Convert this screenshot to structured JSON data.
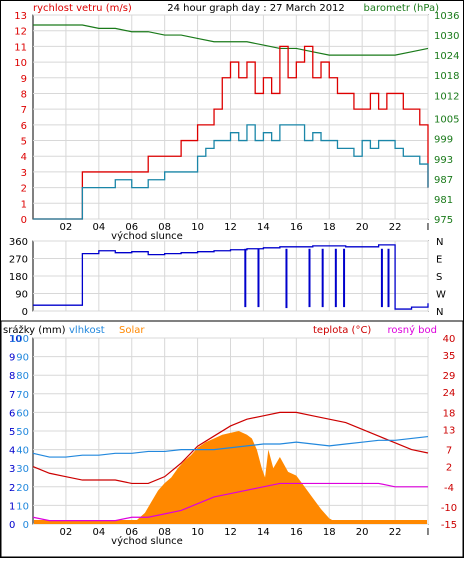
{
  "chart_data": [
    {
      "type": "line",
      "title": "24 hour graph day : 27 March 2012",
      "left_axis_label": "rychlost vetru (m/s)",
      "right_axis_label": "barometr (hPa)",
      "x_ticks": [
        "02",
        "04",
        "06",
        "08",
        "10",
        "12",
        "14",
        "16",
        "18",
        "20",
        "22",
        "I"
      ],
      "x_note": "východ slunce",
      "ylim_left": [
        0,
        13
      ],
      "y_left_ticks": [
        0,
        1,
        2,
        3,
        4,
        5,
        6,
        7,
        8,
        9,
        10,
        11,
        12,
        13
      ],
      "ylim_right": [
        975,
        1036
      ],
      "y_right_ticks": [
        975,
        981,
        987,
        993,
        999,
        1005,
        1012,
        1018,
        1024,
        1030,
        1036
      ],
      "grid": true,
      "colors": {
        "gust": "#dd0000",
        "wind": "#1a86a8",
        "pressure": "#1a7a1a",
        "left_axis": "#dd0000",
        "right_axis": "#1a7a1a"
      },
      "series": [
        {
          "key": "pressure",
          "x": [
            0,
            1,
            2,
            3,
            4,
            5,
            6,
            7,
            8,
            9,
            10,
            11,
            12,
            13,
            14,
            15,
            16,
            17,
            18,
            19,
            20,
            21,
            22,
            23,
            24
          ],
          "values": [
            1033,
            1033,
            1033,
            1033,
            1032,
            1032,
            1031,
            1031,
            1030,
            1030,
            1029,
            1028,
            1028,
            1028,
            1027,
            1026,
            1026,
            1025,
            1024,
            1024,
            1024,
            1024,
            1024,
            1025,
            1026
          ]
        },
        {
          "key": "gust",
          "x": [
            0,
            1,
            2,
            2.5,
            3,
            4,
            5,
            6,
            7,
            8,
            9,
            10,
            10.5,
            11,
            11.5,
            12,
            12.5,
            13,
            13.5,
            14,
            14.5,
            15,
            15.5,
            16,
            16.5,
            17,
            17.5,
            18,
            18.5,
            19,
            19.5,
            20,
            20.5,
            21,
            21.5,
            22,
            22.5,
            23,
            23.5,
            24
          ],
          "values": [
            0,
            0,
            0,
            0,
            3,
            3,
            3,
            3,
            4,
            4,
            5,
            6,
            6,
            7,
            9,
            10,
            9,
            10,
            8,
            9,
            8,
            11,
            9,
            10,
            11,
            9,
            10,
            9,
            8,
            8,
            7,
            7,
            8,
            7,
            8,
            8,
            7,
            7,
            6,
            2
          ]
        },
        {
          "key": "wind",
          "x": [
            0,
            1,
            2,
            2.5,
            3,
            4,
            5,
            6,
            7,
            8,
            9,
            10,
            10.5,
            11,
            11.5,
            12,
            12.5,
            13,
            13.5,
            14,
            14.5,
            15,
            15.5,
            16,
            16.5,
            17,
            17.5,
            18,
            18.5,
            19,
            19.5,
            20,
            20.5,
            21,
            21.5,
            22,
            22.5,
            23,
            23.5,
            24
          ],
          "values": [
            0,
            0,
            0,
            0,
            2,
            2,
            2.5,
            2,
            2.5,
            3,
            3,
            4,
            4.5,
            5,
            5,
            5.5,
            5,
            6,
            5,
            5.5,
            5,
            6,
            6,
            6,
            5,
            5.5,
            5,
            5,
            4.5,
            4.5,
            4,
            5,
            4.5,
            5,
            5,
            4.5,
            4,
            4,
            3.5,
            2
          ]
        }
      ]
    },
    {
      "type": "line",
      "ylim": [
        0,
        360
      ],
      "y_ticks": [
        0,
        90,
        180,
        270,
        360
      ],
      "right_ticks": [
        "N",
        "E",
        "S",
        "W",
        "N"
      ],
      "grid": true,
      "colors": {
        "direction": "#0000cc"
      },
      "series": [
        {
          "key": "direction",
          "x": [
            0,
            1,
            2,
            2.5,
            3,
            4,
            5,
            6,
            7,
            8,
            9,
            10,
            11,
            12,
            13,
            14,
            15,
            16,
            17,
            18,
            19,
            20,
            21,
            22,
            23,
            24
          ],
          "values": [
            30,
            30,
            30,
            30,
            295,
            310,
            300,
            305,
            290,
            295,
            300,
            305,
            310,
            315,
            320,
            325,
            330,
            330,
            335,
            335,
            330,
            330,
            340,
            10,
            20,
            40
          ]
        }
      ],
      "drops": [
        {
          "x": 12.9,
          "value": 20
        },
        {
          "x": 13.7,
          "value": 20
        },
        {
          "x": 15.4,
          "value": 15
        },
        {
          "x": 16.8,
          "value": 20
        },
        {
          "x": 17.6,
          "value": 20
        },
        {
          "x": 18.4,
          "value": 20
        },
        {
          "x": 18.9,
          "value": 20
        },
        {
          "x": 21.2,
          "value": 20
        },
        {
          "x": 21.6,
          "value": 20
        }
      ]
    },
    {
      "type": "area",
      "labels": {
        "precip": "srážky (mm)",
        "humidity": "vlhkost",
        "solar": "Solar",
        "temperature": "teplota (°C)",
        "dew_point": "rosný bod"
      },
      "x_ticks": [
        "02",
        "04",
        "06",
        "08",
        "10",
        "12",
        "14",
        "16",
        "18",
        "20",
        "22",
        "I"
      ],
      "x_note": "východ slunce",
      "ylim_precip": [
        0,
        10
      ],
      "y_precip_ticks": [
        0,
        1,
        2,
        3,
        4,
        5,
        6,
        7,
        8,
        9,
        10
      ],
      "ylim_humidity": [
        0,
        100
      ],
      "y_humidity_ticks": [
        0,
        10,
        20,
        30,
        40,
        50,
        60,
        70,
        80,
        90,
        100
      ],
      "ylim_temperature": [
        -15,
        40
      ],
      "y_temperature_ticks": [
        40,
        35,
        29,
        24,
        18,
        13,
        7,
        2,
        -4,
        -10,
        -15
      ],
      "grid": true,
      "colors": {
        "temperature": "#cc0000",
        "humidity": "#2288dd",
        "solar": "#ff8800",
        "dew_point": "#dd00dd",
        "precip": "#0000cc"
      },
      "series": [
        {
          "key": "temperature",
          "x": [
            0,
            1,
            2,
            3,
            4,
            5,
            6,
            7,
            8,
            9,
            10,
            11,
            12,
            13,
            14,
            15,
            16,
            17,
            18,
            19,
            20,
            21,
            22,
            23,
            24
          ],
          "values": [
            2,
            0,
            -1,
            -2,
            -2,
            -2,
            -3,
            -3,
            -1,
            3,
            8,
            11,
            14,
            16,
            17,
            18,
            18,
            17,
            16,
            15,
            13,
            11,
            9,
            7,
            6
          ]
        },
        {
          "key": "humidity",
          "x": [
            0,
            1,
            2,
            3,
            4,
            5,
            6,
            7,
            8,
            9,
            10,
            11,
            12,
            13,
            14,
            15,
            16,
            17,
            18,
            19,
            20,
            21,
            22,
            23,
            24
          ],
          "values": [
            38,
            36,
            36,
            37,
            37,
            38,
            38,
            39,
            39,
            40,
            40,
            40,
            41,
            42,
            43,
            43,
            44,
            43,
            42,
            43,
            44,
            45,
            45,
            46,
            47
          ]
        },
        {
          "key": "dew_point",
          "x": [
            0,
            1,
            2,
            3,
            4,
            5,
            6,
            7,
            8,
            9,
            10,
            11,
            12,
            13,
            14,
            15,
            16,
            17,
            18,
            19,
            20,
            21,
            22,
            23,
            24
          ],
          "values": [
            -13,
            -14,
            -14,
            -14,
            -14,
            -14,
            -13,
            -13,
            -12,
            -11,
            -9,
            -7,
            -6,
            -5,
            -4,
            -3,
            -3,
            -3,
            -3,
            -3,
            -3,
            -3,
            -4,
            -4,
            -4
          ]
        },
        {
          "key": "solar",
          "x": [
            0,
            5.8,
            6.3,
            6.8,
            7.2,
            7.6,
            8.0,
            8.4,
            8.8,
            9.2,
            9.6,
            10.0,
            10.5,
            11,
            11.5,
            12,
            12.5,
            13,
            13.3,
            13.6,
            13.9,
            14.1,
            14.3,
            14.6,
            15,
            15.5,
            16,
            16.5,
            17,
            17.5,
            18,
            18.4,
            18.8,
            24
          ],
          "values": [
            0,
            0,
            2,
            6,
            12,
            18,
            22,
            25,
            30,
            34,
            37,
            41,
            44,
            46,
            48,
            49,
            50,
            48,
            46,
            40,
            30,
            25,
            40,
            30,
            36,
            28,
            26,
            20,
            14,
            8,
            3,
            1,
            0,
            0
          ],
          "unit_scale": "percent of humidity axis"
        },
        {
          "key": "precip",
          "x": [
            0,
            24
          ],
          "values": [
            0,
            0
          ]
        }
      ]
    }
  ]
}
